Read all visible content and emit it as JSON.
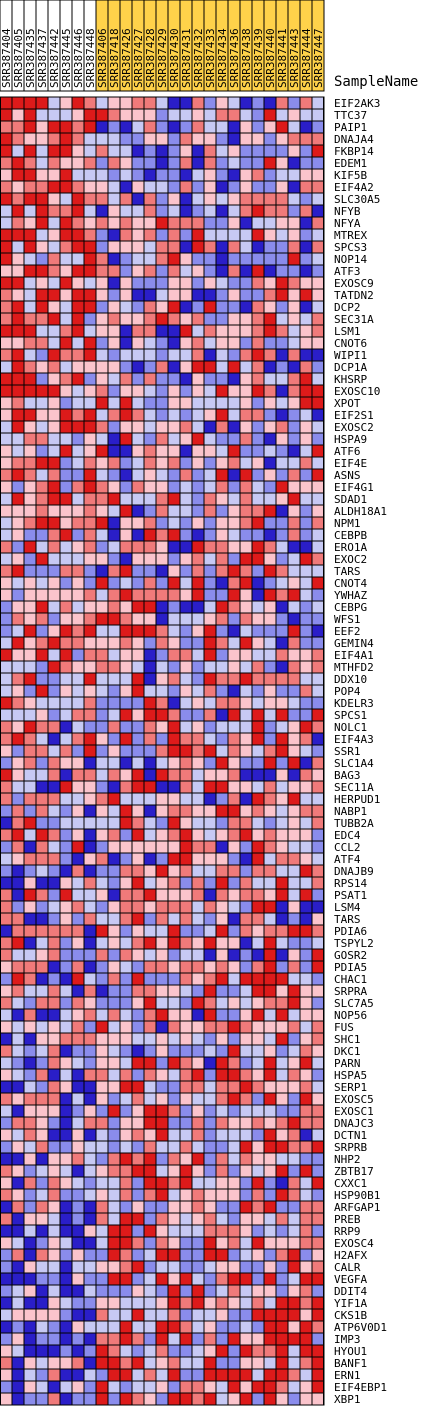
{
  "chart_data": {
    "type": "heatmap",
    "corner_label": "SampleName",
    "columns": [
      {
        "name": "SRR387404",
        "group": "white"
      },
      {
        "name": "SRR387405",
        "group": "white"
      },
      {
        "name": "SRR387435",
        "group": "white"
      },
      {
        "name": "SRR387437",
        "group": "white"
      },
      {
        "name": "SRR387442",
        "group": "white"
      },
      {
        "name": "SRR387445",
        "group": "white"
      },
      {
        "name": "SRR387446",
        "group": "white"
      },
      {
        "name": "SRR387448",
        "group": "white"
      },
      {
        "name": "SRR387406",
        "group": "gold"
      },
      {
        "name": "SRR387418",
        "group": "gold"
      },
      {
        "name": "SRR387426",
        "group": "gold"
      },
      {
        "name": "SRR387427",
        "group": "gold"
      },
      {
        "name": "SRR387428",
        "group": "gold"
      },
      {
        "name": "SRR387429",
        "group": "gold"
      },
      {
        "name": "SRR387430",
        "group": "gold"
      },
      {
        "name": "SRR387431",
        "group": "gold"
      },
      {
        "name": "SRR387432",
        "group": "gold"
      },
      {
        "name": "SRR387433",
        "group": "gold"
      },
      {
        "name": "SRR387434",
        "group": "gold"
      },
      {
        "name": "SRR387436",
        "group": "gold"
      },
      {
        "name": "SRR387438",
        "group": "gold"
      },
      {
        "name": "SRR387439",
        "group": "gold"
      },
      {
        "name": "SRR387440",
        "group": "gold"
      },
      {
        "name": "SRR387441",
        "group": "gold"
      },
      {
        "name": "SRR387443",
        "group": "gold"
      },
      {
        "name": "SRR387444",
        "group": "gold"
      },
      {
        "name": "SRR387447",
        "group": "gold"
      }
    ],
    "rows": [
      "EIF2AK3",
      "TTC37",
      "PAIP1",
      "DNAJA4",
      "FKBP14",
      "EDEM1",
      "KIF5B",
      "EIF4A2",
      "SLC30A5",
      "NFYB",
      "NFYA",
      "MTREX",
      "SPCS3",
      "NOP14",
      "ATF3",
      "EXOSC9",
      "TATDN2",
      "DCP2",
      "SEC31A",
      "LSM1",
      "CNOT6",
      "WIPI1",
      "DCP1A",
      "KHSRP",
      "EXOSC10",
      "XPOT",
      "EIF2S1",
      "EXOSC2",
      "HSPA9",
      "ATF6",
      "EIF4E",
      "ASNS",
      "EIF4G1",
      "SDAD1",
      "ALDH18A1",
      "NPM1",
      "CEBPB",
      "ERO1A",
      "EXOC2",
      "TARS",
      "CNOT4",
      "YWHAZ",
      "CEBPG",
      "WFS1",
      "EEF2",
      "GEMIN4",
      "EIF4A1",
      "MTHFD2",
      "DDX10",
      "POP4",
      "KDELR3",
      "SPCS1",
      "NOLC1",
      "EIF4A3",
      "SSR1",
      "SLC1A4",
      "BAG3",
      "SEC11A",
      "HERPUD1",
      "NABP1",
      "TUBB2A",
      "EDC4",
      "CCL2",
      "ATF4",
      "DNAJB9",
      "RPS14",
      "PSAT1",
      "LSM4",
      "TARS",
      "PDIA6",
      "TSPYL2",
      "GOSR2",
      "PDIA5",
      "CHAC1",
      "SRPRA",
      "SLC7A5",
      "NOP56",
      "FUS",
      "SHC1",
      "DKC1",
      "PARN",
      "HSPA5",
      "SERP1",
      "EXOSC5",
      "EXOSC1",
      "DNAJC3",
      "DCTN1",
      "SRPRB",
      "NHP2",
      "ZBTB17",
      "CXXC1",
      "HSP90B1",
      "ARFGAP1",
      "PREB",
      "RRP9",
      "EXOSC4",
      "H2AFX",
      "CALR",
      "VEGFA",
      "DDIT4",
      "YIF1A",
      "CKS1B",
      "ATP6V0D1",
      "IMP3",
      "HYOU1",
      "BANF1",
      "ERN1",
      "EIF4EBP1",
      "XBP1"
    ],
    "colors": {
      "high": "#dd1a1a",
      "mid_high": "#f07a7a",
      "low_high": "#fbc4cc",
      "low_low": "#c7c9f4",
      "mid_low": "#8a8cec",
      "low": "#2a1ec8",
      "white_group": "#ffffff",
      "gold_group": "#ffd24a",
      "grid": "#000000"
    }
  }
}
